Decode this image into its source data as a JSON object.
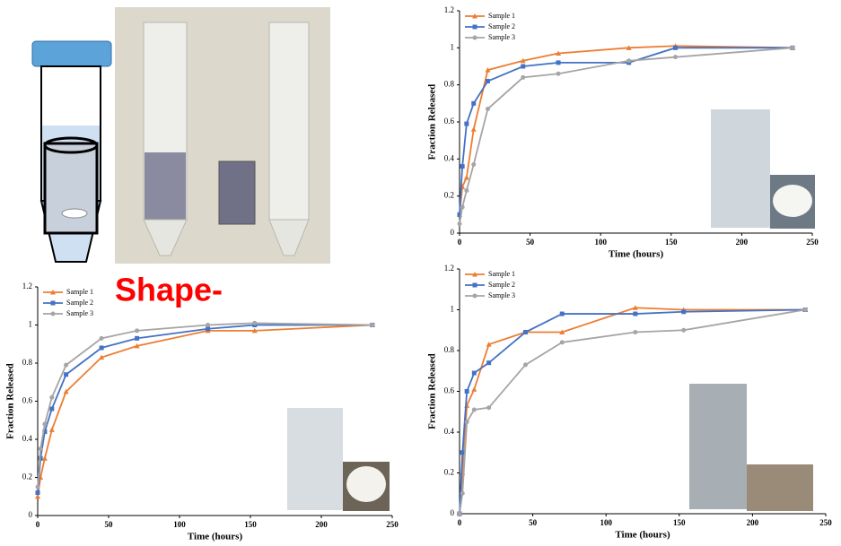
{
  "heading": "Shape-",
  "chart_data": [
    {
      "type": "line",
      "x_label": "Time (hours)",
      "y_label": "Fraction Released",
      "x": [
        0,
        2,
        5,
        10,
        20,
        45,
        70,
        120,
        153,
        236
      ],
      "xlim": [
        0,
        250
      ],
      "xticks": [
        0,
        50,
        100,
        150,
        200,
        250
      ],
      "ylim": [
        0,
        1.2
      ],
      "yticks": [
        0,
        0.2,
        0.4,
        0.6,
        0.8,
        1,
        1.2
      ],
      "series": [
        {
          "name": "Sample 1",
          "color": "#ed7d31",
          "marker": "triangle",
          "values": [
            0.1,
            0.25,
            0.3,
            0.56,
            0.88,
            0.93,
            0.97,
            1.0,
            1.01,
            1.0
          ]
        },
        {
          "name": "Sample 2",
          "color": "#4472c4",
          "marker": "square",
          "values": [
            0.1,
            0.36,
            0.59,
            0.7,
            0.82,
            0.9,
            0.92,
            0.92,
            1.0,
            1.0
          ]
        },
        {
          "name": "Sample 3",
          "color": "#a5a5a5",
          "marker": "circle",
          "values": [
            0.05,
            0.14,
            0.23,
            0.37,
            0.67,
            0.84,
            0.86,
            0.93,
            0.95,
            1.0
          ]
        }
      ]
    },
    {
      "type": "line",
      "x_label": "Time (hours)",
      "y_label": "Fraction Released",
      "x": [
        0,
        2,
        5,
        10,
        20,
        45,
        70,
        120,
        153,
        236
      ],
      "xlim": [
        0,
        250
      ],
      "xticks": [
        0,
        50,
        100,
        150,
        200,
        250
      ],
      "ylim": [
        0,
        1.2
      ],
      "yticks": [
        0,
        0.2,
        0.4,
        0.6,
        0.8,
        1,
        1.2
      ],
      "series": [
        {
          "name": "Sample 1",
          "color": "#ed7d31",
          "marker": "triangle",
          "values": [
            0.1,
            0.2,
            0.3,
            0.45,
            0.65,
            0.83,
            0.89,
            0.97,
            0.97,
            1.0
          ]
        },
        {
          "name": "Sample 2",
          "color": "#4472c4",
          "marker": "square",
          "values": [
            0.12,
            0.3,
            0.44,
            0.56,
            0.74,
            0.88,
            0.93,
            0.98,
            1.0,
            1.0
          ]
        },
        {
          "name": "Sample 3",
          "color": "#a5a5a5",
          "marker": "circle",
          "values": [
            0.15,
            0.35,
            0.48,
            0.62,
            0.79,
            0.93,
            0.97,
            1.0,
            1.01,
            1.0
          ]
        }
      ]
    },
    {
      "type": "line",
      "x_label": "Time (hours)",
      "y_label": "Fraction Released",
      "x": [
        0,
        2,
        5,
        10,
        20,
        45,
        70,
        120,
        153,
        236
      ],
      "xlim": [
        0,
        250
      ],
      "xticks": [
        0,
        50,
        100,
        150,
        200,
        250
      ],
      "ylim": [
        0,
        1.2
      ],
      "yticks": [
        0,
        0.2,
        0.4,
        0.6,
        0.8,
        1,
        1.2
      ],
      "series": [
        {
          "name": "Sample 1",
          "color": "#ed7d31",
          "marker": "triangle",
          "values": [
            0,
            0.2,
            0.53,
            0.61,
            0.83,
            0.89,
            0.89,
            1.01,
            1.0,
            1.0
          ]
        },
        {
          "name": "Sample 2",
          "color": "#4472c4",
          "marker": "square",
          "values": [
            0,
            0.3,
            0.6,
            0.69,
            0.74,
            0.89,
            0.98,
            0.98,
            0.99,
            1.0
          ]
        },
        {
          "name": "Sample 3",
          "color": "#a5a5a5",
          "marker": "circle",
          "values": [
            0,
            0.1,
            0.45,
            0.51,
            0.52,
            0.73,
            0.84,
            0.89,
            0.9,
            1.0
          ]
        }
      ]
    }
  ]
}
